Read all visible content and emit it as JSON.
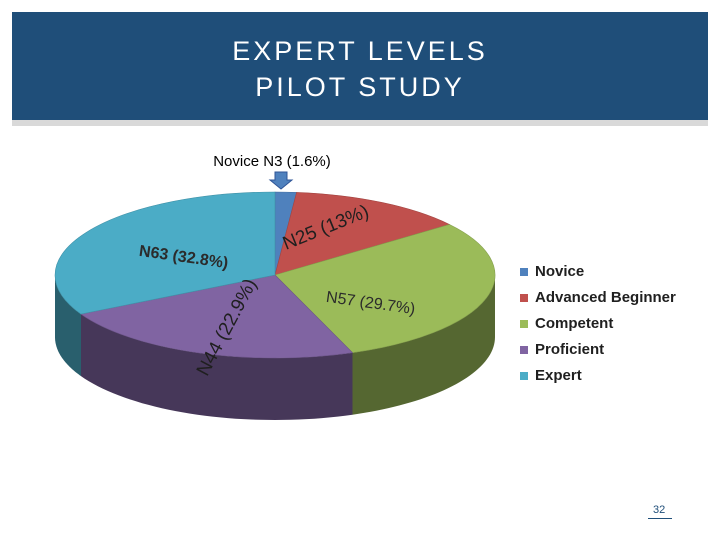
{
  "slide": {
    "title_line_1": "EXPERT LEVELS",
    "title_line_2": "PILOT STUDY",
    "page_number": "32",
    "header_color": "#1f4e79"
  },
  "chart_data": {
    "type": "pie",
    "title": "",
    "legend_position": "right",
    "callout": "Novice N3 (1.6%)",
    "categories": [
      "Novice",
      "Advanced Beginner",
      "Competent",
      "Proficient",
      "Expert"
    ],
    "values": [
      3,
      25,
      57,
      44,
      63
    ],
    "percent_labels": [
      "1.6%",
      "13%",
      "29.7%",
      "22.9%",
      "32.8%"
    ],
    "data_labels": [
      "",
      "N25 (13%)",
      "N57 (29.7%)",
      "N44 (22.9%)",
      "N63 (32.8%)"
    ],
    "colors": [
      "#4f81bd",
      "#c0504d",
      "#9bbb59",
      "#8064a2",
      "#4bacc6"
    ]
  }
}
